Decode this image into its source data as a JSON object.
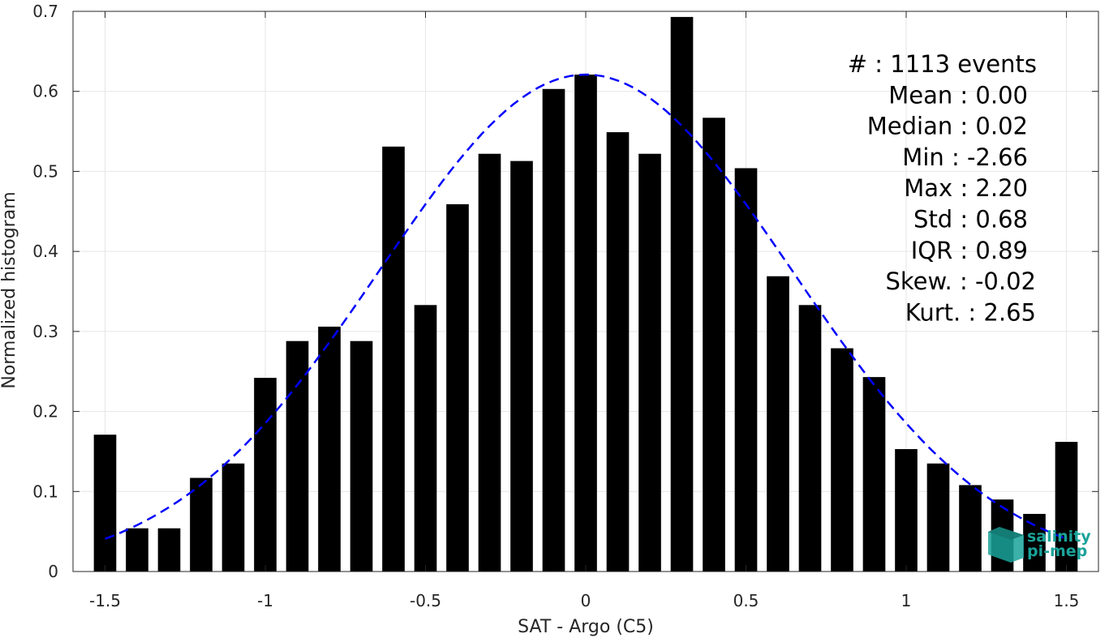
{
  "chart_data": {
    "type": "bar",
    "xlabel": "SAT - Argo (C5)",
    "ylabel": "Normalized histogram",
    "xlim": [
      -1.6,
      1.6
    ],
    "ylim": [
      0,
      0.7
    ],
    "xticks": [
      -1.5,
      -1,
      -0.5,
      0,
      0.5,
      1,
      1.5
    ],
    "xtick_labels": [
      "-1.5",
      "-1",
      "-0.5",
      "0",
      "0.5",
      "1",
      "1.5"
    ],
    "yticks": [
      0,
      0.1,
      0.2,
      0.3,
      0.4,
      0.5,
      0.6,
      0.7
    ],
    "ytick_labels": [
      "0",
      "0.1",
      "0.2",
      "0.3",
      "0.4",
      "0.5",
      "0.6",
      "0.7"
    ],
    "grid": true,
    "bar_color": "#000000",
    "fit_color": "#0000ff",
    "bar_width": 0.07,
    "bins": [
      {
        "x": -1.5,
        "value": 0.171
      },
      {
        "x": -1.4,
        "value": 0.054
      },
      {
        "x": -1.3,
        "value": 0.054
      },
      {
        "x": -1.2,
        "value": 0.117
      },
      {
        "x": -1.1,
        "value": 0.135
      },
      {
        "x": -1.0,
        "value": 0.242
      },
      {
        "x": -0.9,
        "value": 0.288
      },
      {
        "x": -0.8,
        "value": 0.306
      },
      {
        "x": -0.7,
        "value": 0.288
      },
      {
        "x": -0.6,
        "value": 0.531
      },
      {
        "x": -0.5,
        "value": 0.333
      },
      {
        "x": -0.4,
        "value": 0.459
      },
      {
        "x": -0.3,
        "value": 0.522
      },
      {
        "x": -0.2,
        "value": 0.513
      },
      {
        "x": -0.1,
        "value": 0.603
      },
      {
        "x": 0.0,
        "value": 0.621
      },
      {
        "x": 0.1,
        "value": 0.549
      },
      {
        "x": 0.2,
        "value": 0.522
      },
      {
        "x": 0.3,
        "value": 0.693
      },
      {
        "x": 0.4,
        "value": 0.567
      },
      {
        "x": 0.5,
        "value": 0.504
      },
      {
        "x": 0.6,
        "value": 0.369
      },
      {
        "x": 0.7,
        "value": 0.333
      },
      {
        "x": 0.8,
        "value": 0.279
      },
      {
        "x": 0.9,
        "value": 0.243
      },
      {
        "x": 1.0,
        "value": 0.153
      },
      {
        "x": 1.1,
        "value": 0.135
      },
      {
        "x": 1.2,
        "value": 0.108
      },
      {
        "x": 1.3,
        "value": 0.09
      },
      {
        "x": 1.4,
        "value": 0.072
      },
      {
        "x": 1.5,
        "value": 0.162
      }
    ],
    "fit_curve": {
      "style": "dashed",
      "mean": 0.0,
      "std": 0.643,
      "peak": 0.621,
      "x_range": [
        -1.5,
        1.5
      ]
    },
    "stats": [
      {
        "label": "#  : 1113 events"
      },
      {
        "label": "Mean : 0.00"
      },
      {
        "label": "Median : 0.02"
      },
      {
        "label": "Min : -2.66"
      },
      {
        "label": "Max : 2.20"
      },
      {
        "label": "Std : 0.68"
      },
      {
        "label": "IQR : 0.89"
      },
      {
        "label": "Skew. : -0.02"
      },
      {
        "label": "Kurt. : 2.65"
      }
    ],
    "logo": {
      "line1": "salinity",
      "line2": "pi-mep",
      "color": "#1aa39a"
    }
  }
}
